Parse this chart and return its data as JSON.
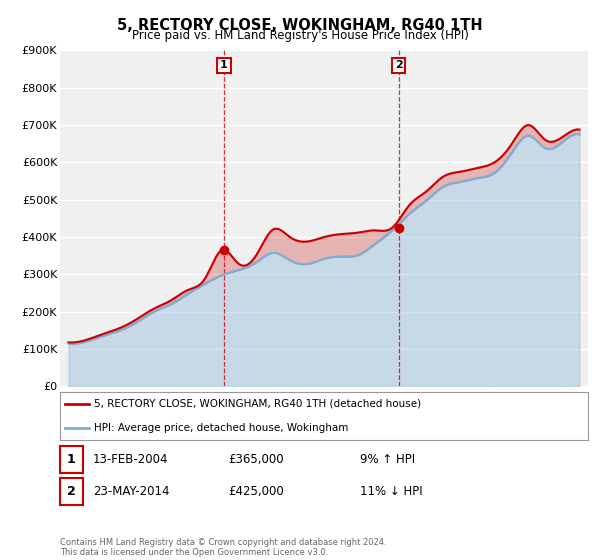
{
  "title": "5, RECTORY CLOSE, WOKINGHAM, RG40 1TH",
  "subtitle": "Price paid vs. HM Land Registry's House Price Index (HPI)",
  "legend_label_red": "5, RECTORY CLOSE, WOKINGHAM, RG40 1TH (detached house)",
  "legend_label_blue": "HPI: Average price, detached house, Wokingham",
  "footer": "Contains HM Land Registry data © Crown copyright and database right 2024.\nThis data is licensed under the Open Government Licence v3.0.",
  "purchases": [
    {
      "num": 1,
      "date": "13-FEB-2004",
      "price": 365000,
      "year": 2004.12,
      "hpi_pct": "9% ↑ HPI"
    },
    {
      "num": 2,
      "date": "23-MAY-2014",
      "price": 425000,
      "year": 2014.39,
      "hpi_pct": "11% ↓ HPI"
    }
  ],
  "ylim": [
    0,
    900000
  ],
  "xlim": [
    1994.5,
    2025.5
  ],
  "yticks": [
    0,
    100000,
    200000,
    300000,
    400000,
    500000,
    600000,
    700000,
    800000,
    900000
  ],
  "ytick_labels": [
    "£0",
    "£100K",
    "£200K",
    "£300K",
    "£400K",
    "£500K",
    "£600K",
    "£700K",
    "£800K",
    "£900K"
  ],
  "bg_color": "#ffffff",
  "plot_bg_color": "#f0f0f0",
  "grid_color": "#ffffff",
  "red_color": "#cc0000",
  "blue_color": "#7bafd4",
  "marker_color": "#cc0000",
  "dashed_color": "#cc0000",
  "years_data": [
    1995,
    1996,
    1997,
    1998,
    1999,
    2000,
    2001,
    2002,
    2003,
    2004,
    2005,
    2006,
    2007,
    2008,
    2009,
    2010,
    2011,
    2012,
    2013,
    2014,
    2015,
    2016,
    2017,
    2018,
    2019,
    2020,
    2021,
    2022,
    2023,
    2024,
    2025
  ],
  "hpi_values": [
    115000,
    120000,
    135000,
    150000,
    172000,
    200000,
    220000,
    248000,
    275000,
    298000,
    312000,
    332000,
    358000,
    338000,
    328000,
    342000,
    348000,
    352000,
    382000,
    418000,
    462000,
    498000,
    535000,
    548000,
    558000,
    572000,
    625000,
    672000,
    638000,
    655000,
    675000
  ],
  "red_values": [
    118000,
    124000,
    140000,
    156000,
    180000,
    208000,
    230000,
    258000,
    288000,
    365000,
    328000,
    350000,
    420000,
    400000,
    388000,
    400000,
    408000,
    412000,
    418000,
    425000,
    485000,
    522000,
    562000,
    575000,
    585000,
    600000,
    648000,
    700000,
    660000,
    668000,
    688000
  ]
}
